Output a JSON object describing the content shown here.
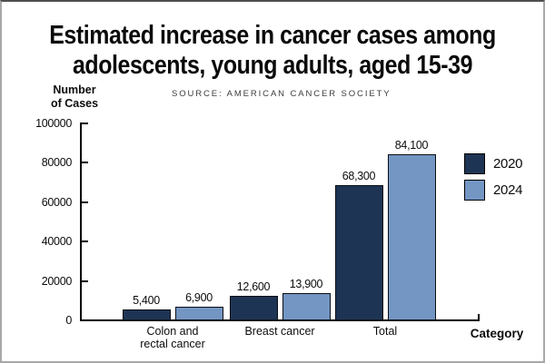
{
  "header": {
    "title_line1": "Estimated increase in cancer cases among",
    "title_line2": "adolescents, young adults, aged 15-39",
    "source": "SOURCE: AMERICAN CANCER SOCIETY"
  },
  "axis": {
    "ylabel_line1": "Number",
    "ylabel_line2": "of Cases",
    "xlabel": "Category"
  },
  "chart_data": {
    "type": "bar",
    "title": "Estimated increase in cancer cases among adolescents, young adults, aged 15-39",
    "source": "SOURCE: AMERICAN CANCER SOCIETY",
    "ylabel": "Number of Cases",
    "xlabel": "Category",
    "categories": [
      "Colon and\nrectal cancer",
      "Breast cancer",
      "Total"
    ],
    "series": [
      {
        "name": "2020",
        "color": "#1e3454",
        "values": [
          5400,
          12600,
          68300
        ],
        "labels": [
          "5,400",
          "12,600",
          "68,300"
        ]
      },
      {
        "name": "2024",
        "color": "#7496c3",
        "values": [
          6900,
          13900,
          84100
        ],
        "labels": [
          "6,900",
          "13,900",
          "84,100"
        ]
      }
    ],
    "ylim": [
      0,
      100000
    ],
    "ytick_step": 20000,
    "ytick_labels": [
      "0",
      "20000",
      "40000",
      "60000",
      "80000",
      "100000"
    ],
    "grid": false,
    "legend_position": "upper right",
    "colors": {
      "bar_2020": "#1e3454",
      "bar_2024": "#7496c3",
      "axis": "#000000",
      "bar_border": "#0a0e14"
    }
  }
}
